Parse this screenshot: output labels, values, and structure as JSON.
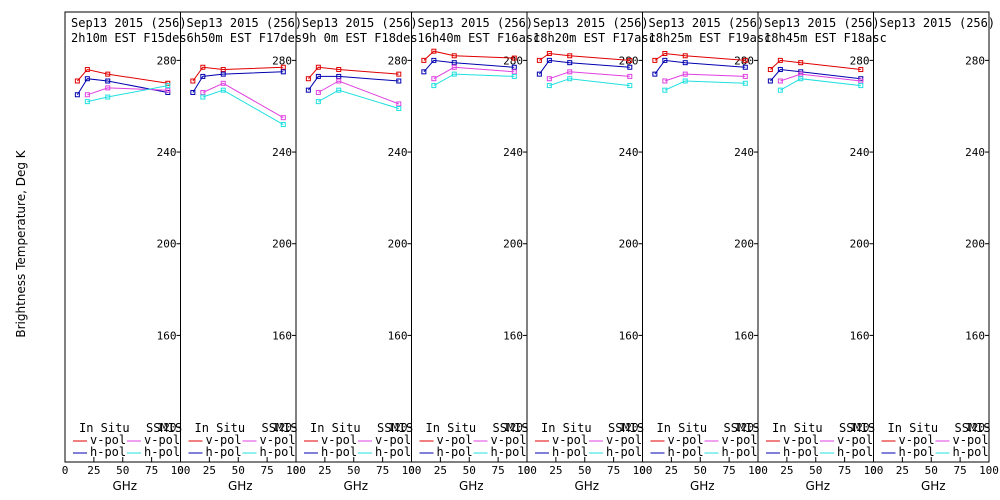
{
  "chart_data": {
    "type": "line",
    "ylabel": "Brightness Temperature, Deg K",
    "xlabel": "GHz",
    "ylim": [
      110,
      295
    ],
    "xlim": [
      0,
      100
    ],
    "yticks": [
      120,
      160,
      200,
      240,
      280
    ],
    "xticks": [
      0,
      25,
      50,
      75,
      100
    ],
    "xtick_labels": [
      "0",
      "25",
      "50",
      "75",
      "100"
    ],
    "legend": {
      "in_situ_label": "In Situ",
      "ssmis_label": "SSMIS",
      "vpol_label": "v-pol",
      "hpol_label": "h-pol"
    },
    "colors": {
      "insitu_v": "#e00000",
      "insitu_h": "#0000b0",
      "ssmis_v": "#e040e0",
      "ssmis_h": "#20e0e0"
    },
    "panels": [
      {
        "date": "Sep13 2015 (256)",
        "time": "2h10m  EST  F15des",
        "series": [
          {
            "name": "insitu_v",
            "x": [
              10.7,
              19.35,
              37,
              89
            ],
            "y": [
              271,
              276,
              274,
              270
            ]
          },
          {
            "name": "insitu_h",
            "x": [
              10.7,
              19.35,
              37,
              89
            ],
            "y": [
              265,
              272,
              271,
              266
            ]
          },
          {
            "name": "ssmis_v",
            "x": [
              19.35,
              37,
              89
            ],
            "y": [
              265,
              268,
              267
            ]
          },
          {
            "name": "ssmis_h",
            "x": [
              19.35,
              37,
              89
            ],
            "y": [
              262,
              264,
              269
            ]
          }
        ]
      },
      {
        "date": "Sep13 2015 (256)",
        "time": "6h50m  EST  F17des",
        "series": [
          {
            "name": "insitu_v",
            "x": [
              10.7,
              19.35,
              37,
              89
            ],
            "y": [
              271,
              277,
              276,
              277
            ]
          },
          {
            "name": "insitu_h",
            "x": [
              10.7,
              19.35,
              37,
              89
            ],
            "y": [
              266,
              273,
              274,
              275
            ]
          },
          {
            "name": "ssmis_v",
            "x": [
              19.35,
              37,
              89
            ],
            "y": [
              266,
              270,
              255
            ]
          },
          {
            "name": "ssmis_h",
            "x": [
              19.35,
              37,
              89
            ],
            "y": [
              264,
              267,
              252
            ]
          }
        ]
      },
      {
        "date": "Sep13 2015 (256)",
        "time": "9h 0m  EST  F18des",
        "series": [
          {
            "name": "insitu_v",
            "x": [
              10.7,
              19.35,
              37,
              89
            ],
            "y": [
              272,
              277,
              276,
              274
            ]
          },
          {
            "name": "insitu_h",
            "x": [
              10.7,
              19.35,
              37,
              89
            ],
            "y": [
              267,
              273,
              273,
              271
            ]
          },
          {
            "name": "ssmis_v",
            "x": [
              19.35,
              37,
              89
            ],
            "y": [
              266,
              271,
              261
            ]
          },
          {
            "name": "ssmis_h",
            "x": [
              19.35,
              37,
              89
            ],
            "y": [
              262,
              267,
              259
            ]
          }
        ]
      },
      {
        "date": "Sep13 2015 (256)",
        "time": "16h40m  EST  F16asc",
        "series": [
          {
            "name": "insitu_v",
            "x": [
              10.7,
              19.35,
              37,
              89
            ],
            "y": [
              280,
              284,
              282,
              281
            ]
          },
          {
            "name": "insitu_h",
            "x": [
              10.7,
              19.35,
              37,
              89
            ],
            "y": [
              275,
              280,
              279,
              277
            ]
          },
          {
            "name": "ssmis_v",
            "x": [
              19.35,
              37,
              89
            ],
            "y": [
              272,
              277,
              275
            ]
          },
          {
            "name": "ssmis_h",
            "x": [
              19.35,
              37,
              89
            ],
            "y": [
              269,
              274,
              273
            ]
          }
        ]
      },
      {
        "date": "Sep13 2015 (256)",
        "time": "18h20m  EST  F17asc",
        "series": [
          {
            "name": "insitu_v",
            "x": [
              10.7,
              19.35,
              37,
              89
            ],
            "y": [
              280,
              283,
              282,
              280
            ]
          },
          {
            "name": "insitu_h",
            "x": [
              10.7,
              19.35,
              37,
              89
            ],
            "y": [
              274,
              280,
              279,
              277
            ]
          },
          {
            "name": "ssmis_v",
            "x": [
              19.35,
              37,
              89
            ],
            "y": [
              272,
              275,
              273
            ]
          },
          {
            "name": "ssmis_h",
            "x": [
              19.35,
              37,
              89
            ],
            "y": [
              269,
              272,
              269
            ]
          }
        ]
      },
      {
        "date": "Sep13 2015 (256)",
        "time": "18h25m  EST  F19asc",
        "series": [
          {
            "name": "insitu_v",
            "x": [
              10.7,
              19.35,
              37,
              89
            ],
            "y": [
              280,
              283,
              282,
              280
            ]
          },
          {
            "name": "insitu_h",
            "x": [
              10.7,
              19.35,
              37,
              89
            ],
            "y": [
              274,
              280,
              279,
              277
            ]
          },
          {
            "name": "ssmis_v",
            "x": [
              19.35,
              37,
              89
            ],
            "y": [
              271,
              274,
              273
            ]
          },
          {
            "name": "ssmis_h",
            "x": [
              19.35,
              37,
              89
            ],
            "y": [
              267,
              271,
              270
            ]
          }
        ]
      },
      {
        "date": "Sep13 2015 (256)",
        "time": "18h45m  EST  F18asc",
        "series": [
          {
            "name": "insitu_v",
            "x": [
              10.7,
              19.35,
              37,
              89
            ],
            "y": [
              276,
              280,
              279,
              276
            ]
          },
          {
            "name": "insitu_h",
            "x": [
              10.7,
              19.35,
              37,
              89
            ],
            "y": [
              271,
              276,
              275,
              272
            ]
          },
          {
            "name": "ssmis_v",
            "x": [
              19.35,
              37,
              89
            ],
            "y": [
              271,
              274,
              271
            ]
          },
          {
            "name": "ssmis_h",
            "x": [
              19.35,
              37,
              89
            ],
            "y": [
              267,
              272,
              269
            ]
          }
        ]
      },
      {
        "date": "Sep13 2015 (256)",
        "time": "",
        "series": []
      }
    ]
  }
}
